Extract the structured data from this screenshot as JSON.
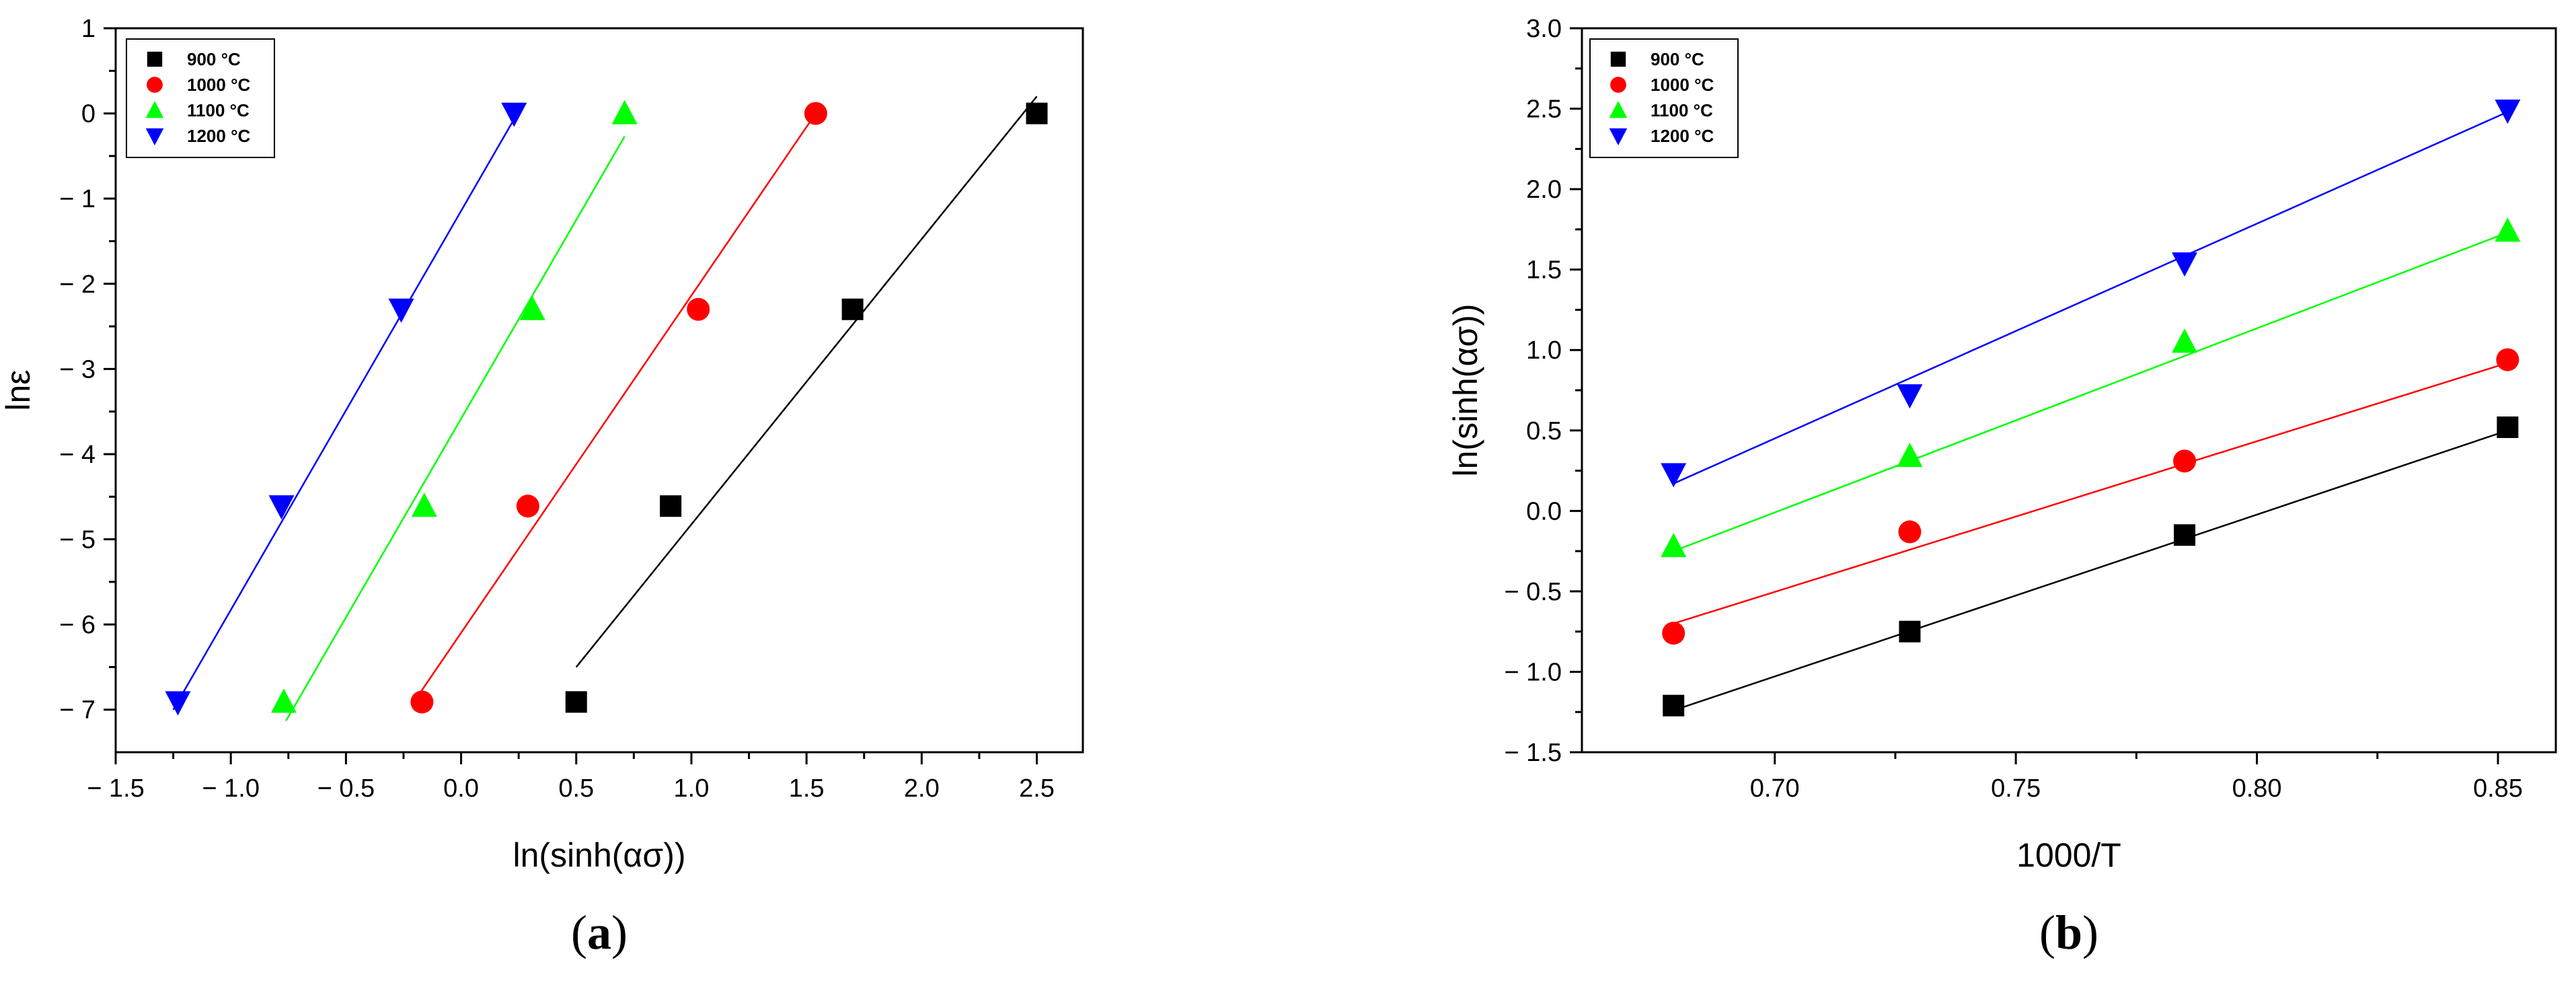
{
  "series_colors": {
    "900 °C": "#000000",
    "1000 °C": "#ff0000",
    "1100 °C": "#00ff00",
    "1200 °C": "#0000ff"
  },
  "chart_data": [
    {
      "type": "scatter",
      "panel_label": {
        "open": "(",
        "letter": "a",
        "close": ")"
      },
      "xlabel": "ln(sinh(ασ))",
      "ylabel": "lnε",
      "xlim": [
        -1.5,
        2.7
      ],
      "ylim": [
        -7.5,
        1
      ],
      "xticks": [
        -1.5,
        -1.0,
        -0.5,
        0.0,
        0.5,
        1.0,
        1.5,
        2.0,
        2.5
      ],
      "xtick_labels": [
        "− 1.5",
        "− 1.0",
        "− 0.5",
        "0.0",
        "0.5",
        "1.0",
        "1.5",
        "2.0",
        "2.5"
      ],
      "yticks": [
        1,
        0,
        -1,
        -2,
        -3,
        -4,
        -5,
        -6,
        -7
      ],
      "ytick_labels": [
        "1",
        "0",
        "− 1",
        "− 2",
        "− 3",
        "− 4",
        "− 5",
        "− 6",
        "− 7"
      ],
      "legend_position": "top-left",
      "series": [
        {
          "name": "900 °C",
          "marker": "square",
          "color": "#000000",
          "points": [
            [
              0.5,
              -6.91
            ],
            [
              0.91,
              -4.61
            ],
            [
              1.7,
              -2.3
            ],
            [
              2.5,
              0.0
            ]
          ],
          "fit": [
            [
              0.5,
              -6.5
            ],
            [
              2.5,
              0.2
            ]
          ]
        },
        {
          "name": "1000 °C",
          "marker": "circle",
          "color": "#ff0000",
          "points": [
            [
              -0.17,
              -6.91
            ],
            [
              0.29,
              -4.61
            ],
            [
              1.03,
              -2.3
            ],
            [
              1.54,
              0.0
            ]
          ],
          "fit": [
            [
              -0.19,
              -6.85
            ],
            [
              1.54,
              0.0
            ]
          ]
        },
        {
          "name": "1100 °C",
          "marker": "triangle-up",
          "color": "#00ff00",
          "points": [
            [
              -0.77,
              -6.91
            ],
            [
              -0.16,
              -4.61
            ],
            [
              0.31,
              -2.3
            ],
            [
              0.71,
              0.0
            ]
          ],
          "fit": [
            [
              -0.76,
              -7.13
            ],
            [
              0.71,
              -0.27
            ]
          ]
        },
        {
          "name": "1200 °C",
          "marker": "triangle-down",
          "color": "#0000ff",
          "points": [
            [
              -1.23,
              -6.91
            ],
            [
              -0.78,
              -4.61
            ],
            [
              -0.26,
              -2.3
            ],
            [
              0.23,
              0.0
            ]
          ],
          "fit": [
            [
              -1.25,
              -7.0
            ],
            [
              0.24,
              -0.02
            ]
          ]
        }
      ]
    },
    {
      "type": "scatter",
      "panel_label": {
        "open": "(",
        "letter": "b",
        "close": ")"
      },
      "xlabel": "1000/T",
      "ylabel": "ln(sinh(ασ))",
      "xlim": [
        0.66,
        0.862
      ],
      "ylim": [
        -1.5,
        3.0
      ],
      "xticks": [
        0.7,
        0.75,
        0.8,
        0.85
      ],
      "xtick_labels": [
        "0.70",
        "0.75",
        "0.80",
        "0.85"
      ],
      "yticks": [
        3.0,
        2.5,
        2.0,
        1.5,
        1.0,
        0.5,
        0.0,
        -0.5,
        -1.0,
        -1.5
      ],
      "ytick_labels": [
        "3.0",
        "2.5",
        "2.0",
        "1.5",
        "1.0",
        "0.5",
        "0.0",
        "− 0.5",
        "− 1.0",
        "− 1.5"
      ],
      "legend_position": "top-left",
      "series": [
        {
          "name": "900 °C",
          "marker": "square",
          "color": "#000000",
          "points": [
            [
              0.679,
              -1.21
            ],
            [
              0.728,
              -0.75
            ],
            [
              0.785,
              -0.15
            ],
            [
              0.852,
              0.52
            ]
          ],
          "fit": [
            [
              0.679,
              -1.24
            ],
            [
              0.852,
              0.5
            ]
          ]
        },
        {
          "name": "1000 °C",
          "marker": "circle",
          "color": "#ff0000",
          "points": [
            [
              0.679,
              -0.76
            ],
            [
              0.728,
              -0.13
            ],
            [
              0.785,
              0.31
            ],
            [
              0.852,
              0.94
            ]
          ],
          "fit": [
            [
              0.679,
              -0.7
            ],
            [
              0.852,
              0.92
            ]
          ]
        },
        {
          "name": "1100 °C",
          "marker": "triangle-up",
          "color": "#00ff00",
          "points": [
            [
              0.679,
              -0.22
            ],
            [
              0.728,
              0.34
            ],
            [
              0.785,
              1.05
            ],
            [
              0.852,
              1.74
            ]
          ],
          "fit": [
            [
              0.679,
              -0.25
            ],
            [
              0.852,
              1.73
            ]
          ]
        },
        {
          "name": "1200 °C",
          "marker": "triangle-down",
          "color": "#0000ff",
          "points": [
            [
              0.679,
              0.23
            ],
            [
              0.728,
              0.72
            ],
            [
              0.785,
              1.54
            ],
            [
              0.852,
              2.49
            ]
          ],
          "fit": [
            [
              0.679,
              0.17
            ],
            [
              0.852,
              2.48
            ]
          ]
        }
      ]
    }
  ]
}
